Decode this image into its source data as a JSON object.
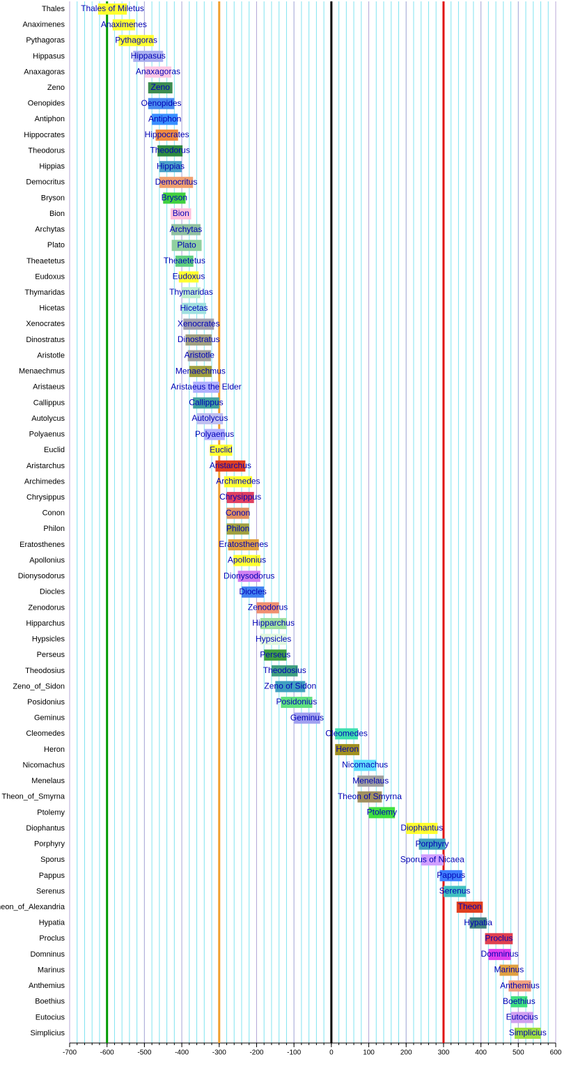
{
  "chart_data": {
    "type": "gantt",
    "xlim": [
      -700,
      600
    ],
    "xticks": [
      -700,
      -600,
      -500,
      -400,
      -300,
      -200,
      -100,
      0,
      100,
      200,
      300,
      400,
      500,
      600
    ],
    "minor_step": 20,
    "grid": true,
    "reference_lines": [
      {
        "value": -600,
        "color": "#009900"
      },
      {
        "value": -300,
        "color": "#f0a030"
      },
      {
        "value": 0,
        "color": "#000000"
      },
      {
        "value": 300,
        "color": "#e01010"
      }
    ],
    "categories": [
      "Thales",
      "Anaximenes",
      "Pythagoras",
      "Hippasus",
      "Anaxagoras",
      "Zeno",
      "Oenopides",
      "Antiphon",
      "Hippocrates",
      "Theodorus",
      "Hippias",
      "Democritus",
      "Bryson",
      "Bion",
      "Archytas",
      "Plato",
      "Theaetetus",
      "Eudoxus",
      "Thymaridas",
      "Hicetas",
      "Xenocrates",
      "Dinostratus",
      "Aristotle",
      "Menaechmus",
      "Aristaeus",
      "Callippus",
      "Autolycus",
      "Polyaenus",
      "Euclid",
      "Aristarchus",
      "Archimedes",
      "Chrysippus",
      "Conon",
      "Philon",
      "Eratosthenes",
      "Apollonius",
      "Dionysodorus",
      "Diocles",
      "Zenodorus",
      "Hipparchus",
      "Hypsicles",
      "Perseus",
      "Theodosius",
      "Zeno_of_Sidon",
      "Posidonius",
      "Geminus",
      "Cleomedes",
      "Heron",
      "Nicomachus",
      "Menelaus",
      "Theon_of_Smyrna",
      "Ptolemy",
      "Diophantus",
      "Porphyry",
      "Sporus",
      "Pappus",
      "Serenus",
      "Theon_of_Alexandria",
      "Hypatia",
      "Proclus",
      "Domninus",
      "Marinus",
      "Anthemius",
      "Boethius",
      "Eutocius",
      "Simplicius"
    ],
    "bars": [
      {
        "label": "Thales of Miletus",
        "start": -624,
        "end": -547,
        "color": "#ffff30"
      },
      {
        "label": "Anaximenes",
        "start": -585,
        "end": -525,
        "color": "#ffff30"
      },
      {
        "label": "Pythagoras",
        "start": -569,
        "end": -475,
        "color": "#ffff30"
      },
      {
        "label": "Hippasus",
        "start": -530,
        "end": -450,
        "color": "#aab0f0"
      },
      {
        "label": "Anaxagoras",
        "start": -499,
        "end": -428,
        "color": "#ffc8e4"
      },
      {
        "label": "Zeno",
        "start": -490,
        "end": -425,
        "color": "#3c8c50"
      },
      {
        "label": "Oenopides",
        "start": -490,
        "end": -420,
        "color": "#4a8cf0"
      },
      {
        "label": "Antiphon",
        "start": -480,
        "end": -411,
        "color": "#3a90ff"
      },
      {
        "label": "Hippocrates",
        "start": -470,
        "end": -410,
        "color": "#f08c40"
      },
      {
        "label": "Theodorus",
        "start": -465,
        "end": -398,
        "color": "#2e8b40"
      },
      {
        "label": "Hippias",
        "start": -460,
        "end": -400,
        "color": "#4aa0c8"
      },
      {
        "label": "Democritus",
        "start": -460,
        "end": -370,
        "color": "#f0a070"
      },
      {
        "label": "Bryson",
        "start": -450,
        "end": -390,
        "color": "#40d040"
      },
      {
        "label": "Bion",
        "start": -430,
        "end": -375,
        "color": "#ffc0dc"
      },
      {
        "label": "Archytas",
        "start": -428,
        "end": -350,
        "color": "#90c0a0"
      },
      {
        "label": "Plato",
        "start": -427,
        "end": -347,
        "color": "#90d0a0"
      },
      {
        "label": "Theaetetus",
        "start": -417,
        "end": -369,
        "color": "#60d080"
      },
      {
        "label": "Eudoxus",
        "start": -408,
        "end": -355,
        "color": "#ffff30"
      },
      {
        "label": "Thymaridas",
        "start": -400,
        "end": -350,
        "color": "#c0f0d0"
      },
      {
        "label": "Hicetas",
        "start": -400,
        "end": -335,
        "color": "#a0e0e0"
      },
      {
        "label": "Xenocrates",
        "start": -396,
        "end": -314,
        "color": "#a0a0b0"
      },
      {
        "label": "Dinostratus",
        "start": -390,
        "end": -320,
        "color": "#a0a080"
      },
      {
        "label": "Aristotle",
        "start": -384,
        "end": -322,
        "color": "#a0a0a0"
      },
      {
        "label": "Menaechmus",
        "start": -380,
        "end": -320,
        "color": "#a0a040"
      },
      {
        "label": "Aristaeus the Elder",
        "start": -370,
        "end": -300,
        "color": "#b0b0ff"
      },
      {
        "label": "Callippus",
        "start": -370,
        "end": -300,
        "color": "#40a0a0"
      },
      {
        "label": "Autolycus",
        "start": -360,
        "end": -290,
        "color": "#c0c0f0"
      },
      {
        "label": "Polyaenus",
        "start": -340,
        "end": -285,
        "color": "#b0b0ff"
      },
      {
        "label": "Euclid",
        "start": -325,
        "end": -265,
        "color": "#ffff30"
      },
      {
        "label": "Aristarchus",
        "start": -310,
        "end": -230,
        "color": "#e04020"
      },
      {
        "label": "Archimedes",
        "start": -287,
        "end": -212,
        "color": "#ffff30"
      },
      {
        "label": "Chrysippus",
        "start": -280,
        "end": -207,
        "color": "#e04060"
      },
      {
        "label": "Conon",
        "start": -280,
        "end": -220,
        "color": "#e09060"
      },
      {
        "label": "Philon",
        "start": -280,
        "end": -220,
        "color": "#a0a040"
      },
      {
        "label": "Eratosthenes",
        "start": -276,
        "end": -194,
        "color": "#e0a040"
      },
      {
        "label": "Apollonius",
        "start": -262,
        "end": -190,
        "color": "#ffff30"
      },
      {
        "label": "Dionysodorus",
        "start": -250,
        "end": -190,
        "color": "#d080f0"
      },
      {
        "label": "Diocles",
        "start": -240,
        "end": -180,
        "color": "#4080f0"
      },
      {
        "label": "Zenodorus",
        "start": -200,
        "end": -140,
        "color": "#f09070"
      },
      {
        "label": "Hipparchus",
        "start": -190,
        "end": -120,
        "color": "#a0e0a0"
      },
      {
        "label": "Hypsicles",
        "start": -190,
        "end": -120,
        "color": "#e0f8e0"
      },
      {
        "label": "Perseus",
        "start": -180,
        "end": -120,
        "color": "#40a040"
      },
      {
        "label": "Theodosius",
        "start": -160,
        "end": -90,
        "color": "#40a080"
      },
      {
        "label": "Zeno of Sidon",
        "start": -150,
        "end": -70,
        "color": "#40a0c0"
      },
      {
        "label": "Posidonius",
        "start": -135,
        "end": -51,
        "color": "#60e080"
      },
      {
        "label": "Geminus",
        "start": -100,
        "end": -30,
        "color": "#a0a0f0"
      },
      {
        "label": "Cleomedes",
        "start": 10,
        "end": 71,
        "color": "#40e0b0"
      },
      {
        "label": "Heron",
        "start": 10,
        "end": 75,
        "color": "#a09020"
      },
      {
        "label": "Nicomachus",
        "start": 60,
        "end": 120,
        "color": "#60e0ff"
      },
      {
        "label": "Menelaus",
        "start": 70,
        "end": 140,
        "color": "#a0a0a0"
      },
      {
        "label": "Theon of Smyrna",
        "start": 70,
        "end": 135,
        "color": "#a09060"
      },
      {
        "label": "Ptolemy",
        "start": 100,
        "end": 170,
        "color": "#40e040"
      },
      {
        "label": "Diophantus",
        "start": 200,
        "end": 284,
        "color": "#ffff30"
      },
      {
        "label": "Porphyry",
        "start": 234,
        "end": 305,
        "color": "#40a0c0"
      },
      {
        "label": "Sporus of Nicaea",
        "start": 240,
        "end": 300,
        "color": "#d0a0ff"
      },
      {
        "label": "Pappus",
        "start": 290,
        "end": 350,
        "color": "#4080ff"
      },
      {
        "label": "Serenus",
        "start": 300,
        "end": 360,
        "color": "#40c0c0"
      },
      {
        "label": "Theon",
        "start": 335,
        "end": 405,
        "color": "#e04020"
      },
      {
        "label": "Hypatia",
        "start": 370,
        "end": 415,
        "color": "#408080"
      },
      {
        "label": "Proclus",
        "start": 411,
        "end": 485,
        "color": "#e04050"
      },
      {
        "label": "Domninus",
        "start": 420,
        "end": 480,
        "color": "#e040f0"
      },
      {
        "label": "Marinus",
        "start": 450,
        "end": 500,
        "color": "#e0a040"
      },
      {
        "label": "Anthemius",
        "start": 474,
        "end": 534,
        "color": "#f0a080"
      },
      {
        "label": "Boethius",
        "start": 480,
        "end": 524,
        "color": "#40e080"
      },
      {
        "label": "Eutocius",
        "start": 480,
        "end": 540,
        "color": "#d0a0f0"
      },
      {
        "label": "Simplicius",
        "start": 490,
        "end": 560,
        "color": "#a0e040"
      }
    ]
  }
}
